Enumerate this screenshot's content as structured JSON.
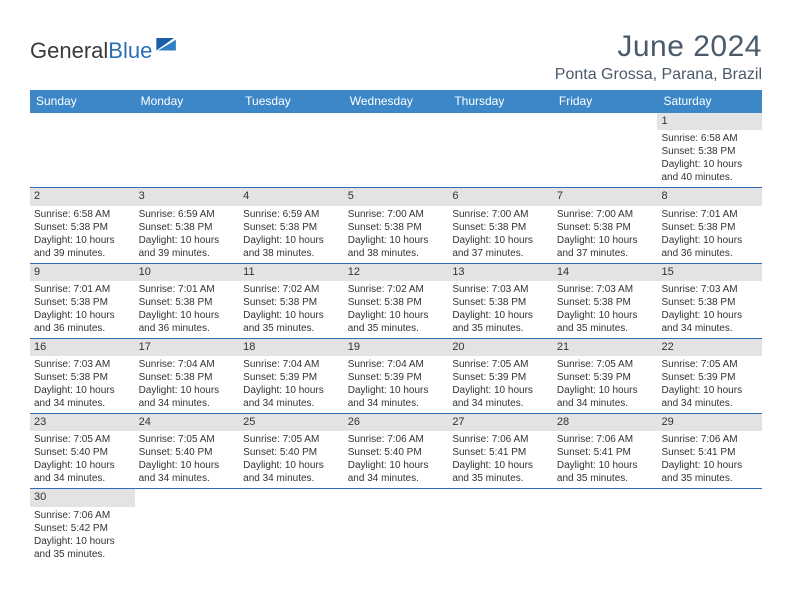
{
  "brand": {
    "name_a": "General",
    "name_b": "Blue"
  },
  "title": "June 2024",
  "location": "Ponta Grossa, Parana, Brazil",
  "colors": {
    "header_bg": "#3b87c8",
    "header_text": "#ffffff",
    "divider": "#2a6fb5",
    "daynum_bg": "#e3e3e3",
    "title_color": "#4a5a6a"
  },
  "weekdays": [
    "Sunday",
    "Monday",
    "Tuesday",
    "Wednesday",
    "Thursday",
    "Friday",
    "Saturday"
  ],
  "weeks": [
    [
      {
        "n": "",
        "empty": true
      },
      {
        "n": "",
        "empty": true
      },
      {
        "n": "",
        "empty": true
      },
      {
        "n": "",
        "empty": true
      },
      {
        "n": "",
        "empty": true
      },
      {
        "n": "",
        "empty": true
      },
      {
        "n": "1",
        "sunrise": "Sunrise: 6:58 AM",
        "sunset": "Sunset: 5:38 PM",
        "day1": "Daylight: 10 hours",
        "day2": "and 40 minutes."
      }
    ],
    [
      {
        "n": "2",
        "sunrise": "Sunrise: 6:58 AM",
        "sunset": "Sunset: 5:38 PM",
        "day1": "Daylight: 10 hours",
        "day2": "and 39 minutes."
      },
      {
        "n": "3",
        "sunrise": "Sunrise: 6:59 AM",
        "sunset": "Sunset: 5:38 PM",
        "day1": "Daylight: 10 hours",
        "day2": "and 39 minutes."
      },
      {
        "n": "4",
        "sunrise": "Sunrise: 6:59 AM",
        "sunset": "Sunset: 5:38 PM",
        "day1": "Daylight: 10 hours",
        "day2": "and 38 minutes."
      },
      {
        "n": "5",
        "sunrise": "Sunrise: 7:00 AM",
        "sunset": "Sunset: 5:38 PM",
        "day1": "Daylight: 10 hours",
        "day2": "and 38 minutes."
      },
      {
        "n": "6",
        "sunrise": "Sunrise: 7:00 AM",
        "sunset": "Sunset: 5:38 PM",
        "day1": "Daylight: 10 hours",
        "day2": "and 37 minutes."
      },
      {
        "n": "7",
        "sunrise": "Sunrise: 7:00 AM",
        "sunset": "Sunset: 5:38 PM",
        "day1": "Daylight: 10 hours",
        "day2": "and 37 minutes."
      },
      {
        "n": "8",
        "sunrise": "Sunrise: 7:01 AM",
        "sunset": "Sunset: 5:38 PM",
        "day1": "Daylight: 10 hours",
        "day2": "and 36 minutes."
      }
    ],
    [
      {
        "n": "9",
        "sunrise": "Sunrise: 7:01 AM",
        "sunset": "Sunset: 5:38 PM",
        "day1": "Daylight: 10 hours",
        "day2": "and 36 minutes."
      },
      {
        "n": "10",
        "sunrise": "Sunrise: 7:01 AM",
        "sunset": "Sunset: 5:38 PM",
        "day1": "Daylight: 10 hours",
        "day2": "and 36 minutes."
      },
      {
        "n": "11",
        "sunrise": "Sunrise: 7:02 AM",
        "sunset": "Sunset: 5:38 PM",
        "day1": "Daylight: 10 hours",
        "day2": "and 35 minutes."
      },
      {
        "n": "12",
        "sunrise": "Sunrise: 7:02 AM",
        "sunset": "Sunset: 5:38 PM",
        "day1": "Daylight: 10 hours",
        "day2": "and 35 minutes."
      },
      {
        "n": "13",
        "sunrise": "Sunrise: 7:03 AM",
        "sunset": "Sunset: 5:38 PM",
        "day1": "Daylight: 10 hours",
        "day2": "and 35 minutes."
      },
      {
        "n": "14",
        "sunrise": "Sunrise: 7:03 AM",
        "sunset": "Sunset: 5:38 PM",
        "day1": "Daylight: 10 hours",
        "day2": "and 35 minutes."
      },
      {
        "n": "15",
        "sunrise": "Sunrise: 7:03 AM",
        "sunset": "Sunset: 5:38 PM",
        "day1": "Daylight: 10 hours",
        "day2": "and 34 minutes."
      }
    ],
    [
      {
        "n": "16",
        "sunrise": "Sunrise: 7:03 AM",
        "sunset": "Sunset: 5:38 PM",
        "day1": "Daylight: 10 hours",
        "day2": "and 34 minutes."
      },
      {
        "n": "17",
        "sunrise": "Sunrise: 7:04 AM",
        "sunset": "Sunset: 5:38 PM",
        "day1": "Daylight: 10 hours",
        "day2": "and 34 minutes."
      },
      {
        "n": "18",
        "sunrise": "Sunrise: 7:04 AM",
        "sunset": "Sunset: 5:39 PM",
        "day1": "Daylight: 10 hours",
        "day2": "and 34 minutes."
      },
      {
        "n": "19",
        "sunrise": "Sunrise: 7:04 AM",
        "sunset": "Sunset: 5:39 PM",
        "day1": "Daylight: 10 hours",
        "day2": "and 34 minutes."
      },
      {
        "n": "20",
        "sunrise": "Sunrise: 7:05 AM",
        "sunset": "Sunset: 5:39 PM",
        "day1": "Daylight: 10 hours",
        "day2": "and 34 minutes."
      },
      {
        "n": "21",
        "sunrise": "Sunrise: 7:05 AM",
        "sunset": "Sunset: 5:39 PM",
        "day1": "Daylight: 10 hours",
        "day2": "and 34 minutes."
      },
      {
        "n": "22",
        "sunrise": "Sunrise: 7:05 AM",
        "sunset": "Sunset: 5:39 PM",
        "day1": "Daylight: 10 hours",
        "day2": "and 34 minutes."
      }
    ],
    [
      {
        "n": "23",
        "sunrise": "Sunrise: 7:05 AM",
        "sunset": "Sunset: 5:40 PM",
        "day1": "Daylight: 10 hours",
        "day2": "and 34 minutes."
      },
      {
        "n": "24",
        "sunrise": "Sunrise: 7:05 AM",
        "sunset": "Sunset: 5:40 PM",
        "day1": "Daylight: 10 hours",
        "day2": "and 34 minutes."
      },
      {
        "n": "25",
        "sunrise": "Sunrise: 7:05 AM",
        "sunset": "Sunset: 5:40 PM",
        "day1": "Daylight: 10 hours",
        "day2": "and 34 minutes."
      },
      {
        "n": "26",
        "sunrise": "Sunrise: 7:06 AM",
        "sunset": "Sunset: 5:40 PM",
        "day1": "Daylight: 10 hours",
        "day2": "and 34 minutes."
      },
      {
        "n": "27",
        "sunrise": "Sunrise: 7:06 AM",
        "sunset": "Sunset: 5:41 PM",
        "day1": "Daylight: 10 hours",
        "day2": "and 35 minutes."
      },
      {
        "n": "28",
        "sunrise": "Sunrise: 7:06 AM",
        "sunset": "Sunset: 5:41 PM",
        "day1": "Daylight: 10 hours",
        "day2": "and 35 minutes."
      },
      {
        "n": "29",
        "sunrise": "Sunrise: 7:06 AM",
        "sunset": "Sunset: 5:41 PM",
        "day1": "Daylight: 10 hours",
        "day2": "and 35 minutes."
      }
    ],
    [
      {
        "n": "30",
        "sunrise": "Sunrise: 7:06 AM",
        "sunset": "Sunset: 5:42 PM",
        "day1": "Daylight: 10 hours",
        "day2": "and 35 minutes."
      },
      {
        "n": "",
        "empty": true
      },
      {
        "n": "",
        "empty": true
      },
      {
        "n": "",
        "empty": true
      },
      {
        "n": "",
        "empty": true
      },
      {
        "n": "",
        "empty": true
      },
      {
        "n": "",
        "empty": true
      }
    ]
  ]
}
